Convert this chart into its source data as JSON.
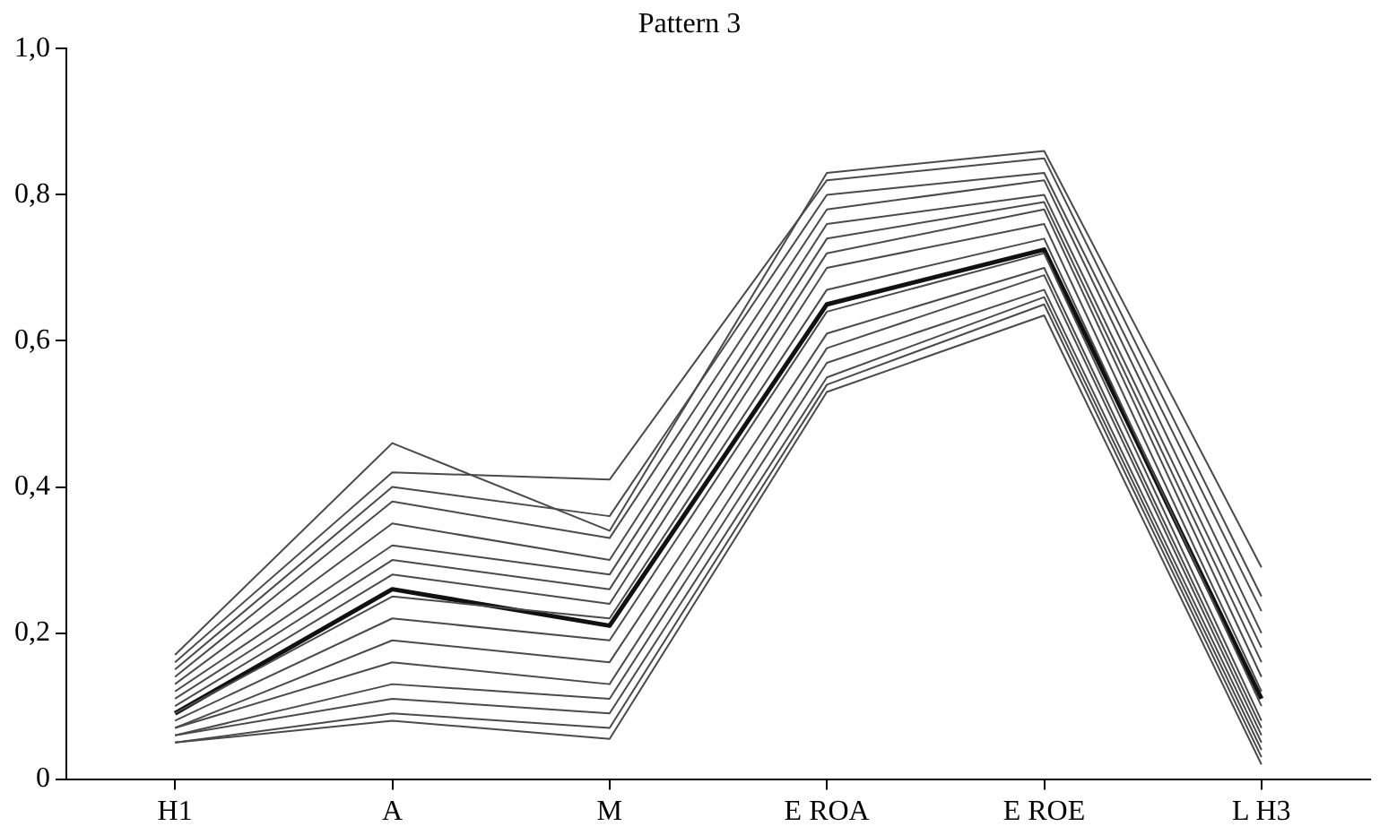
{
  "chart_data": {
    "type": "line",
    "title": "Pattern 3",
    "categories": [
      "H1",
      "A",
      "M",
      "E ROA",
      "E ROE",
      "L H3"
    ],
    "ylim": [
      0,
      1
    ],
    "yticks": [
      0,
      {
        "value": 0.2,
        "label": "0,2"
      },
      {
        "value": 0.4,
        "label": "0,4"
      },
      {
        "value": 0.6,
        "label": "0,6"
      },
      {
        "value": 0.8,
        "label": "0,8"
      },
      {
        "value": 1,
        "label": "1,0"
      }
    ],
    "grid": false,
    "legend": false,
    "marker": "none",
    "line_style": "solid",
    "series": [
      {
        "color": "#4a4a4a",
        "values": [
          0.17,
          0.46,
          0.34,
          0.83,
          0.86,
          0.29
        ]
      },
      {
        "color": "#4a4a4a",
        "values": [
          0.16,
          0.42,
          0.41,
          0.82,
          0.85,
          0.25
        ]
      },
      {
        "color": "#4a4a4a",
        "values": [
          0.15,
          0.4,
          0.36,
          0.8,
          0.83,
          0.23
        ]
      },
      {
        "color": "#4a4a4a",
        "values": [
          0.14,
          0.38,
          0.33,
          0.78,
          0.82,
          0.2
        ]
      },
      {
        "color": "#4a4a4a",
        "values": [
          0.13,
          0.35,
          0.3,
          0.76,
          0.8,
          0.18
        ]
      },
      {
        "color": "#4a4a4a",
        "values": [
          0.12,
          0.32,
          0.28,
          0.74,
          0.79,
          0.16
        ]
      },
      {
        "color": "#4a4a4a",
        "values": [
          0.11,
          0.3,
          0.26,
          0.72,
          0.78,
          0.14
        ]
      },
      {
        "color": "#4a4a4a",
        "values": [
          0.1,
          0.28,
          0.24,
          0.7,
          0.76,
          0.12
        ]
      },
      {
        "color": "#4a4a4a",
        "values": [
          0.09,
          0.25,
          0.22,
          0.67,
          0.74,
          0.1
        ]
      },
      {
        "color": "#4a4a4a",
        "values": [
          0.08,
          0.22,
          0.19,
          0.64,
          0.72,
          0.08
        ]
      },
      {
        "color": "#4a4a4a",
        "values": [
          0.07,
          0.19,
          0.16,
          0.61,
          0.7,
          0.07
        ]
      },
      {
        "color": "#4a4a4a",
        "values": [
          0.07,
          0.16,
          0.13,
          0.59,
          0.69,
          0.06
        ]
      },
      {
        "color": "#4a4a4a",
        "values": [
          0.06,
          0.13,
          0.11,
          0.57,
          0.67,
          0.05
        ]
      },
      {
        "color": "#4a4a4a",
        "values": [
          0.06,
          0.11,
          0.09,
          0.55,
          0.66,
          0.04
        ]
      },
      {
        "color": "#4a4a4a",
        "values": [
          0.05,
          0.09,
          0.07,
          0.54,
          0.65,
          0.03
        ]
      },
      {
        "color": "#4a4a4a",
        "values": [
          0.05,
          0.08,
          0.055,
          0.53,
          0.635,
          0.02
        ]
      },
      {
        "color": "#111111",
        "values": [
          0.09,
          0.26,
          0.21,
          0.65,
          0.725,
          0.11
        ]
      }
    ]
  }
}
